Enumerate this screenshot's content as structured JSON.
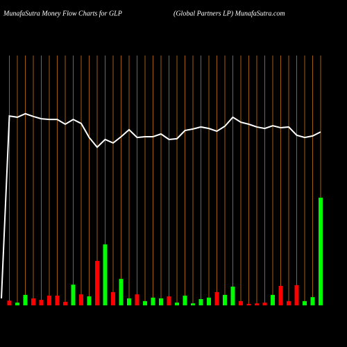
{
  "chart_data": {
    "type": "bar",
    "title": "MunafaSutra  Money Flow  Charts for GLP",
    "subtitle": "(Global Partners LP) MunafaSutra.com",
    "categories": [
      null,
      null,
      null,
      null,
      null,
      null,
      null,
      null,
      null,
      null,
      null,
      null,
      null,
      null,
      null,
      null,
      null,
      null,
      null,
      null,
      null,
      null,
      null,
      null,
      null,
      null,
      null,
      null,
      null,
      null,
      null,
      null,
      null,
      null,
      null,
      null,
      null,
      null,
      null,
      null,
      null
    ],
    "ylim": [
      0,
      100
    ],
    "grid_color": "#a0600f",
    "series": [
      {
        "type": "bar",
        "values": [
          null,
          1.9,
          1.1,
          4.2,
          2.8,
          2.2,
          3.9,
          3.9,
          1.4,
          8.3,
          4.4,
          3.6,
          17.8,
          24.4,
          5.3,
          10.6,
          2.8,
          4.4,
          1.7,
          3.1,
          2.8,
          3.6,
          1.1,
          3.9,
          0.8,
          2.5,
          3.1,
          5.3,
          4.2,
          7.5,
          1.7,
          0.6,
          0.8,
          1.1,
          4.2,
          7.8,
          1.7,
          8.1,
          1.7,
          3.3,
          43.1
        ],
        "colors": [
          null,
          "#ff0000",
          "#00ff00",
          "#00ff00",
          "#ff0000",
          "#ff0000",
          "#ff0000",
          "#ff0000",
          "#ff0000",
          "#00ff00",
          "#ff0000",
          "#00ff00",
          "#ff0000",
          "#00ff00",
          "#ff0000",
          "#00ff00",
          "#00ff00",
          "#ff0000",
          "#00ff00",
          "#00ff00",
          "#00ff00",
          "#ff0000",
          "#00ff00",
          "#00ff00",
          "#00ff00",
          "#00ff00",
          "#00ff00",
          "#ff0000",
          "#00ff00",
          "#00ff00",
          "#ff0000",
          "#ff0000",
          "#ff0000",
          "#ff0000",
          "#00ff00",
          "#ff0000",
          "#ff0000",
          "#ff0000",
          "#00ff00",
          "#00ff00",
          "#00ff00"
        ]
      },
      {
        "type": "line",
        "color": "#ffffff",
        "values": [
          2.8,
          75.8,
          75.3,
          76.7,
          75.6,
          74.7,
          74.4,
          74.4,
          72.5,
          74.4,
          72.8,
          67.2,
          63.3,
          66.4,
          65,
          67.5,
          70.3,
          67.2,
          67.5,
          67.5,
          68.6,
          66.4,
          66.7,
          70,
          70.6,
          71.4,
          70.8,
          69.7,
          71.7,
          75.3,
          73.3,
          72.5,
          71.4,
          70.8,
          71.9,
          71.1,
          71.4,
          68.1,
          67.2,
          67.8,
          69.4
        ]
      }
    ]
  }
}
